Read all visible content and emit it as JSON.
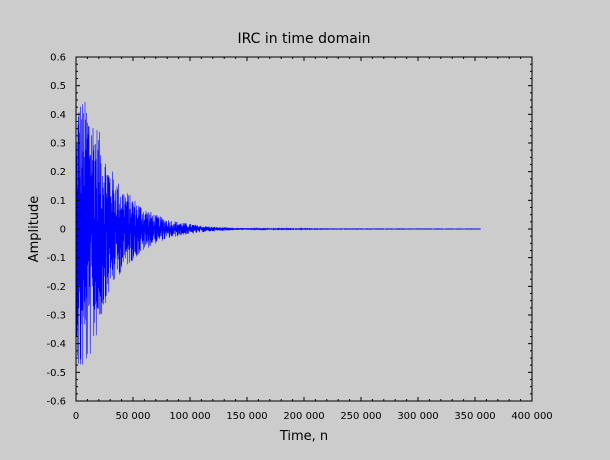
{
  "chart_data": {
    "type": "line",
    "title": "IRC in time domain",
    "xlabel": "Time, n",
    "ylabel": "Amplitude",
    "xlim": [
      0,
      400000
    ],
    "ylim": [
      -0.6,
      0.6
    ],
    "x_ticks": [
      0,
      50000,
      100000,
      150000,
      200000,
      250000,
      300000,
      350000,
      400000
    ],
    "x_tick_labels": [
      "0",
      "50 000",
      "100 000",
      "150 000",
      "200 000",
      "250 000",
      "300 000",
      "350 000",
      "400 000"
    ],
    "y_ticks": [
      -0.6,
      -0.5,
      -0.4,
      -0.3,
      -0.2,
      -0.1,
      0,
      0.1,
      0.2,
      0.3,
      0.4,
      0.5,
      0.6
    ],
    "y_tick_labels": [
      "-0.6",
      "-0.5",
      "-0.4",
      "-0.3",
      "-0.2",
      "-0.1",
      "0",
      "0.1",
      "0.2",
      "0.3",
      "0.4",
      "0.5",
      "0.6"
    ],
    "grid": false,
    "colors": {
      "series": "#0000ff",
      "background": "#cccccc",
      "axes": "#000000"
    },
    "series": [
      {
        "x": [
          0,
          2000,
          5000,
          8000,
          10000,
          15000,
          20000,
          25000,
          30000,
          35000,
          40000,
          50000,
          60000,
          70000,
          80000,
          90000,
          100000,
          110000,
          120000,
          130000,
          140000,
          150000,
          175000,
          200000,
          225000,
          250000,
          275000,
          300000,
          325000,
          350000,
          355000
        ],
        "upper": [
          0.3,
          0.47,
          0.46,
          0.45,
          0.46,
          0.4,
          0.35,
          0.27,
          0.22,
          0.18,
          0.15,
          0.11,
          0.075,
          0.05,
          0.035,
          0.025,
          0.018,
          0.012,
          0.008,
          0.006,
          0.004,
          0.003,
          0.002,
          0.0015,
          0.001,
          0.001,
          0.001,
          0.0008,
          0.0008,
          0.0008,
          0.0005
        ],
        "lower": [
          -0.3,
          -0.53,
          -0.52,
          -0.5,
          -0.48,
          -0.42,
          -0.35,
          -0.27,
          -0.22,
          -0.18,
          -0.15,
          -0.11,
          -0.075,
          -0.05,
          -0.035,
          -0.025,
          -0.018,
          -0.012,
          -0.008,
          -0.006,
          -0.004,
          -0.003,
          -0.002,
          -0.0015,
          -0.001,
          -0.001,
          -0.001,
          -0.0008,
          -0.0008,
          -0.0008,
          -0.0005
        ]
      }
    ]
  }
}
